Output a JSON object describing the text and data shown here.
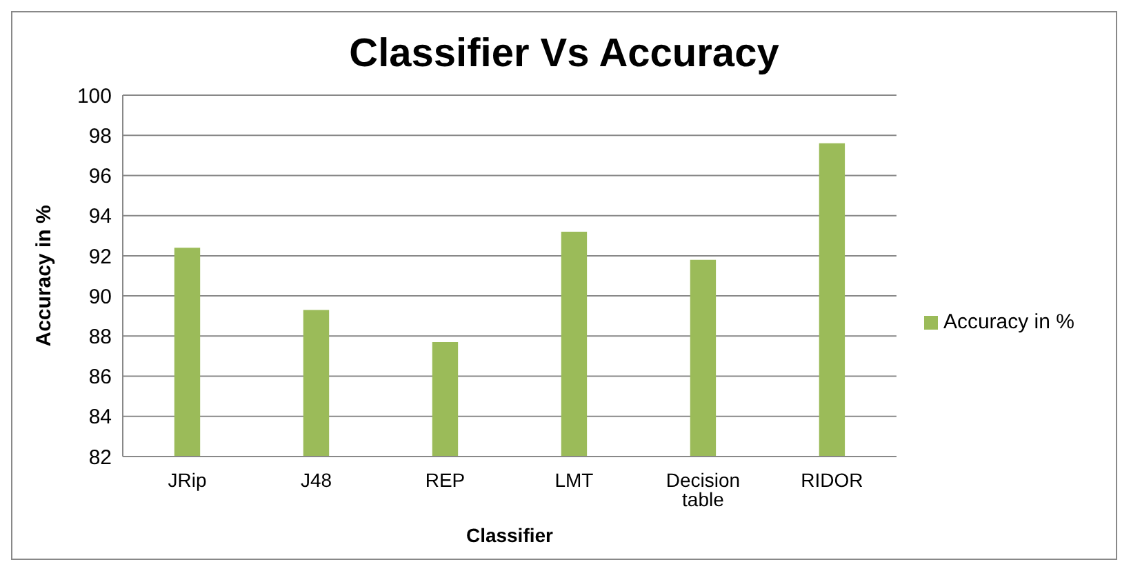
{
  "chart_data": {
    "type": "bar",
    "title": "Classifier Vs Accuracy",
    "xlabel": "Classifier",
    "ylabel": "Accuracy in %",
    "categories": [
      "JRip",
      "J48",
      "REP",
      "LMT",
      "Decision table",
      "RIDOR"
    ],
    "series": [
      {
        "name": "Accuracy in %",
        "color": "#9bbb59",
        "values": [
          92.4,
          89.3,
          87.7,
          93.2,
          91.8,
          97.6
        ]
      }
    ],
    "ylim": [
      82,
      100
    ],
    "yticks": [
      82,
      84,
      86,
      88,
      90,
      92,
      94,
      96,
      98,
      100
    ],
    "grid": "y",
    "legend": "right"
  }
}
